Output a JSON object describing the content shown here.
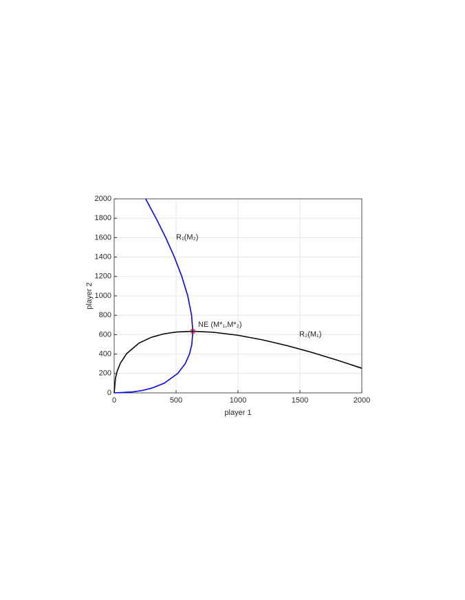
{
  "chart_data": {
    "type": "line",
    "xlabel": "player 1",
    "ylabel": "player 2",
    "xlim": [
      0,
      2000
    ],
    "ylim": [
      0,
      2000
    ],
    "xticks": [
      0,
      500,
      1000,
      1500,
      2000
    ],
    "yticks": [
      0,
      200,
      400,
      600,
      800,
      1000,
      1200,
      1400,
      1600,
      1800,
      2000
    ],
    "grid": true,
    "series": [
      {
        "color": "#0000ff",
        "x": [
          0,
          149,
          227,
          306,
          404,
          513,
          573,
          608,
          627,
          635,
          625,
          594,
          546,
          486,
          416,
          338,
          254
        ],
        "values": [
          0,
          10,
          25,
          50,
          100,
          200,
          300,
          400,
          500,
          635,
          800,
          1000,
          1200,
          1400,
          1600,
          1800,
          2000
        ]
      },
      {
        "color": "#000000",
        "x": [
          0,
          10,
          25,
          50,
          100,
          200,
          300,
          400,
          500,
          635,
          800,
          1000,
          1200,
          1400,
          1600,
          1800,
          2000
        ],
        "values": [
          0,
          149,
          227,
          306,
          404,
          513,
          573,
          608,
          627,
          635,
          625,
          594,
          546,
          486,
          416,
          338,
          254
        ]
      }
    ],
    "equilibrium": {
      "x": 635,
      "y": 635,
      "color": "#ff0000"
    },
    "annotations": [
      "R₁(M₂)",
      "R₂(M₁)",
      "NE (M*₁,M*₂)"
    ]
  }
}
